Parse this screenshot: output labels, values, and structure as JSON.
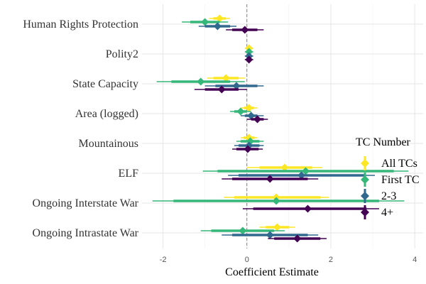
{
  "chart_data": {
    "type": "coefficient-plot",
    "xlabel": "Coefficient Estimate",
    "xlim": [
      -2.5,
      4.2
    ],
    "xticks": [
      -2,
      0,
      2,
      4
    ],
    "xtick_labels": [
      "-2",
      "0",
      "2",
      "4"
    ],
    "reference_line": 0,
    "grid": true,
    "legend": {
      "title": "TC Number",
      "position": "right",
      "entries": [
        "All TCs",
        "First TC",
        "2-3",
        "4+"
      ]
    },
    "terms": [
      "Human Rights Protection",
      "Polity2",
      "State Capacity",
      "Area (logged)",
      "Mountainous",
      "ELF",
      "Ongoing Interstate War",
      "Ongoing Intrastate War"
    ],
    "series": [
      {
        "name": "All TCs",
        "color": "#FDE725",
        "estimates": [
          -0.65,
          0.05,
          -0.5,
          0.05,
          0.05,
          0.9,
          0.7,
          0.72
        ],
        "ci_inner": [
          [
            -0.8,
            -0.5
          ],
          [
            0.0,
            0.1
          ],
          [
            -0.8,
            -0.2
          ],
          [
            -0.07,
            0.17
          ],
          [
            -0.08,
            0.18
          ],
          [
            0.3,
            1.55
          ],
          [
            -0.3,
            1.75
          ],
          [
            0.45,
            1.0
          ]
        ],
        "ci_outer": [
          [
            -0.9,
            -0.4
          ],
          [
            -0.05,
            0.15
          ],
          [
            -0.95,
            -0.05
          ],
          [
            -0.15,
            0.25
          ],
          [
            -0.15,
            0.25
          ],
          [
            0.0,
            1.8
          ],
          [
            -0.55,
            1.95
          ],
          [
            0.3,
            1.15
          ]
        ]
      },
      {
        "name": "First TC",
        "color": "#35B779",
        "estimates": [
          -1.0,
          0.05,
          -1.1,
          -0.15,
          0.08,
          1.4,
          0.7,
          -0.1
        ],
        "ci_inner": [
          [
            -1.35,
            -0.65
          ],
          [
            0.0,
            0.1
          ],
          [
            -1.8,
            -0.4
          ],
          [
            -0.3,
            0.0
          ],
          [
            -0.15,
            0.3
          ],
          [
            -0.7,
            3.5
          ],
          [
            -1.75,
            3.15
          ],
          [
            -0.85,
            0.65
          ]
        ],
        "ci_outer": [
          [
            -1.55,
            -0.45
          ],
          [
            -0.05,
            0.15
          ],
          [
            -2.15,
            -0.05
          ],
          [
            -0.4,
            0.1
          ],
          [
            -0.25,
            0.4
          ],
          [
            -1.05,
            3.85
          ],
          [
            -2.25,
            3.75
          ],
          [
            -1.1,
            0.9
          ]
        ]
      },
      {
        "name": "2-3",
        "color": "#31688E",
        "estimates": [
          -0.7,
          0.05,
          -0.25,
          0.1,
          0.05,
          1.3,
          null,
          0.55
        ],
        "ci_inner": [
          [
            -1.0,
            -0.4
          ],
          [
            0.0,
            0.1
          ],
          [
            -0.75,
            0.25
          ],
          [
            -0.05,
            0.25
          ],
          [
            -0.2,
            0.3
          ],
          [
            -0.2,
            2.8
          ],
          null,
          [
            -0.35,
            1.45
          ]
        ],
        "ci_outer": [
          [
            -1.15,
            -0.25
          ],
          [
            -0.05,
            0.15
          ],
          [
            -1.0,
            0.4
          ],
          [
            -0.15,
            0.4
          ],
          [
            -0.3,
            0.4
          ],
          [
            -0.45,
            3.05
          ],
          null,
          [
            -0.6,
            1.7
          ]
        ]
      },
      {
        "name": "4+",
        "color": "#440154",
        "estimates": [
          -0.05,
          0.05,
          -0.6,
          0.25,
          0.02,
          0.55,
          1.45,
          1.2
        ],
        "ci_inner": [
          [
            -0.35,
            0.25
          ],
          [
            0.0,
            0.1
          ],
          [
            -1.0,
            -0.2
          ],
          [
            0.1,
            0.4
          ],
          [
            -0.25,
            0.28
          ],
          [
            -0.35,
            1.45
          ],
          [
            0.15,
            2.85
          ],
          [
            0.65,
            1.75
          ]
        ],
        "ci_outer": [
          [
            -0.5,
            0.4
          ],
          [
            -0.05,
            0.15
          ],
          [
            -1.25,
            0.0
          ],
          [
            0.0,
            0.5
          ],
          [
            -0.35,
            0.38
          ],
          [
            -0.6,
            1.7
          ],
          [
            -0.1,
            3.15
          ],
          [
            0.5,
            1.9
          ]
        ]
      }
    ]
  }
}
